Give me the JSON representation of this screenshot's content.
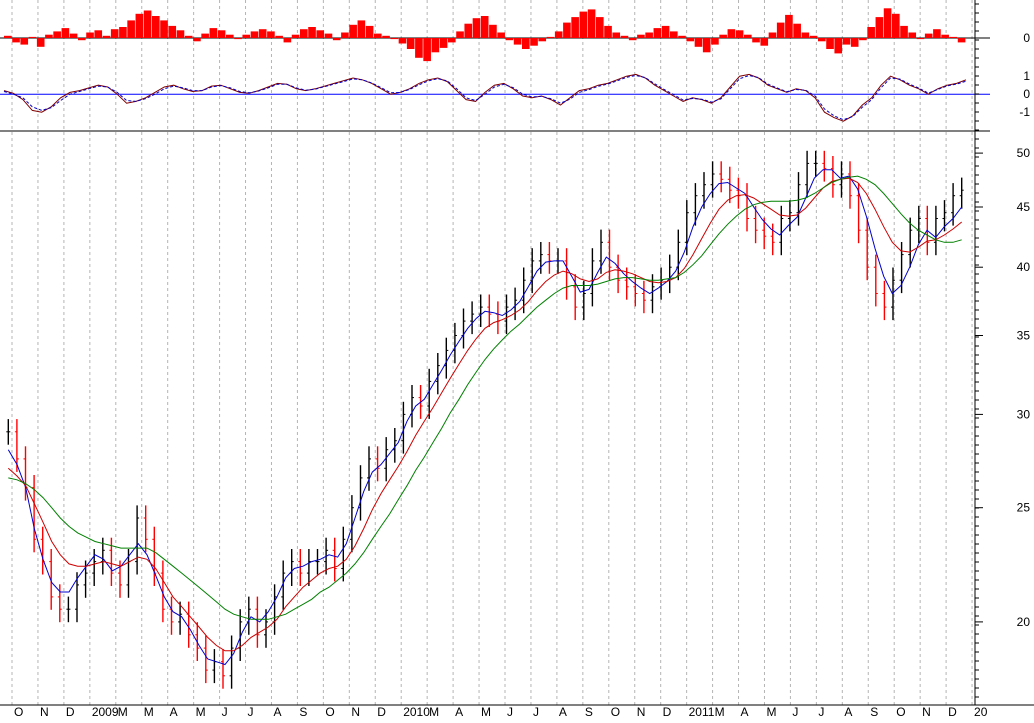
{
  "chart_data": [
    {
      "panel": "histogram",
      "type": "bar",
      "y_ticks": [
        {
          "value": 0,
          "label": "0"
        }
      ],
      "colors": {
        "bars": "#ff0000",
        "zero_line": "#000000"
      },
      "values": [
        0.2,
        -0.4,
        -0.6,
        0.1,
        -0.8,
        0.3,
        0.6,
        0.9,
        0.4,
        -0.2,
        0.5,
        0.7,
        0.2,
        0.8,
        1.0,
        1.6,
        2.2,
        2.5,
        2.0,
        1.6,
        1.1,
        0.7,
        0.2,
        -0.3,
        0.4,
        0.9,
        0.7,
        0.3,
        -0.1,
        0.3,
        0.6,
        0.8,
        0.6,
        0.2,
        -0.4,
        0.3,
        0.8,
        1.0,
        0.7,
        0.4,
        -0.2,
        0.5,
        1.2,
        1.6,
        1.1,
        0.4,
        0.2,
        -0.1,
        -0.5,
        -1.0,
        -1.8,
        -2.1,
        -1.3,
        -0.9,
        -0.4,
        0.6,
        1.3,
        1.8,
        2.0,
        1.2,
        0.5,
        -0.2,
        -0.6,
        -1.0,
        -0.7,
        -0.3,
        0.1,
        0.6,
        1.4,
        1.9,
        2.4,
        2.6,
        1.9,
        1.1,
        0.5,
        0.2,
        -0.2,
        0.3,
        0.5,
        0.9,
        1.1,
        0.6,
        0.2,
        -0.3,
        -0.8,
        -1.3,
        -0.6,
        0.3,
        0.8,
        0.7,
        0.3,
        -0.4,
        -0.7,
        0.5,
        1.4,
        2.1,
        1.3,
        0.5,
        0.2,
        -0.3,
        -1.0,
        -1.4,
        -0.6,
        -0.8,
        -0.2,
        1.0,
        1.9,
        2.7,
        2.2,
        1.1,
        0.5,
        -0.1,
        0.4,
        0.8,
        0.3,
        0.1,
        -0.4
      ]
    },
    {
      "panel": "oscillator",
      "type": "line",
      "y_ticks": [
        {
          "value": 1,
          "label": "1"
        },
        {
          "value": 0,
          "label": "0"
        },
        {
          "value": -1,
          "label": "-1"
        }
      ],
      "ylim": [
        -1.6,
        1.4
      ],
      "colors": {
        "line": "#800000",
        "signal": "#0000cc",
        "zero_line": "#0000ff"
      },
      "series": [
        {
          "values": [
            0.2,
            0.05,
            -0.3,
            -0.9,
            -1.0,
            -0.7,
            -0.2,
            0.1,
            0.2,
            0.35,
            0.5,
            0.4,
            0.0,
            -0.5,
            -0.4,
            -0.2,
            0.1,
            0.4,
            0.5,
            0.3,
            0.15,
            0.2,
            0.45,
            0.5,
            0.3,
            0.1,
            0.05,
            0.2,
            0.4,
            0.6,
            0.55,
            0.3,
            0.2,
            0.3,
            0.45,
            0.6,
            0.75,
            0.9,
            0.8,
            0.6,
            0.3,
            0.0,
            0.1,
            0.3,
            0.6,
            0.8,
            0.9,
            0.7,
            0.2,
            -0.3,
            -0.4,
            0.1,
            0.5,
            0.6,
            0.3,
            -0.1,
            -0.2,
            -0.1,
            -0.3,
            -0.6,
            -0.2,
            0.2,
            0.3,
            0.5,
            0.6,
            0.8,
            1.0,
            1.1,
            0.9,
            0.5,
            0.2,
            -0.1,
            -0.4,
            -0.2,
            -0.3,
            -0.5,
            -0.2,
            0.4,
            1.0,
            1.1,
            0.9,
            0.5,
            0.3,
            0.1,
            0.3,
            0.2,
            -0.2,
            -1.0,
            -1.3,
            -1.5,
            -1.2,
            -0.6,
            -0.2,
            0.5,
            1.0,
            0.8,
            0.5,
            0.3,
            0.0,
            0.3,
            0.5,
            0.6,
            0.8
          ]
        },
        {
          "values": [
            0.15,
            0.0,
            -0.2,
            -0.7,
            -0.9,
            -0.75,
            -0.35,
            0.0,
            0.15,
            0.3,
            0.45,
            0.4,
            0.1,
            -0.35,
            -0.4,
            -0.25,
            0.0,
            0.3,
            0.45,
            0.35,
            0.2,
            0.2,
            0.4,
            0.48,
            0.35,
            0.15,
            0.08,
            0.18,
            0.35,
            0.55,
            0.55,
            0.35,
            0.22,
            0.28,
            0.42,
            0.56,
            0.7,
            0.85,
            0.8,
            0.62,
            0.36,
            0.08,
            0.1,
            0.26,
            0.52,
            0.74,
            0.86,
            0.74,
            0.3,
            -0.2,
            -0.35,
            0.0,
            0.4,
            0.55,
            0.36,
            0.0,
            -0.15,
            -0.12,
            -0.25,
            -0.5,
            -0.28,
            0.1,
            0.25,
            0.44,
            0.56,
            0.74,
            0.94,
            1.04,
            0.92,
            0.58,
            0.26,
            -0.02,
            -0.32,
            -0.24,
            -0.28,
            -0.44,
            -0.26,
            0.3,
            0.86,
            1.04,
            0.92,
            0.56,
            0.34,
            0.14,
            0.26,
            0.22,
            -0.1,
            -0.82,
            -1.2,
            -1.42,
            -1.24,
            -0.72,
            -0.3,
            0.36,
            0.9,
            0.84,
            0.56,
            0.34,
            0.06,
            0.26,
            0.46,
            0.56,
            0.72
          ]
        }
      ]
    },
    {
      "panel": "price",
      "type": "line",
      "scale": "log",
      "ylim": [
        17,
        52
      ],
      "y_ticks": [
        {
          "value": 50,
          "label": "50"
        },
        {
          "value": 45,
          "label": "45"
        },
        {
          "value": 40,
          "label": "40"
        },
        {
          "value": 35,
          "label": "35"
        },
        {
          "value": 30,
          "label": "30"
        },
        {
          "value": 25,
          "label": "25"
        },
        {
          "value": 20,
          "label": "20"
        }
      ],
      "x_ticks": [
        "O",
        "N",
        "D",
        "2009",
        "M",
        "M",
        "A",
        "M",
        "J",
        "J",
        "A",
        "S",
        "O",
        "N",
        "D",
        "2010",
        "M",
        "A",
        "M",
        "J",
        "J",
        "A",
        "S",
        "O",
        "N",
        "D",
        "2011",
        "M",
        "A",
        "M",
        "J",
        "J",
        "A",
        "S",
        "O",
        "N",
        "D",
        "20"
      ],
      "grid": "vertical dashed",
      "colors": {
        "price_up": "#000000",
        "price_down": "#ff0000",
        "ma_fast": "#0000cc",
        "ma_mid": "#cc0000",
        "ma_slow": "#008000",
        "grid": "#b4b4b4"
      },
      "series": [
        {
          "values": [
            29,
            27.5,
            26,
            23.5,
            22.5,
            21,
            20.5,
            20.5,
            21.5,
            22,
            22.5,
            23,
            22,
            21.5,
            22.5,
            24.5,
            23.5,
            22,
            20.5,
            20,
            20.3,
            19.5,
            19,
            18.2,
            18.5,
            18,
            19,
            20,
            20.5,
            19.5,
            20,
            21,
            22,
            22.5,
            22,
            22.5,
            22.5,
            23,
            22.2,
            23.5,
            25,
            26.5,
            27.5,
            27,
            28,
            28.5,
            30,
            31,
            30.5,
            32,
            33,
            34,
            35,
            36,
            36.5,
            37,
            36.5,
            36,
            37,
            37.5,
            39,
            40.5,
            41,
            40.5,
            40.5,
            38.5,
            37,
            38,
            40.5,
            42,
            40,
            39,
            38.5,
            38,
            37.5,
            38.5,
            39,
            40,
            42,
            44.5,
            46,
            47,
            48,
            47.5,
            46.5,
            46,
            44,
            43,
            42.5,
            42,
            44,
            44.5,
            47,
            49,
            49,
            48.5,
            47,
            48,
            46,
            43,
            40,
            38,
            37,
            39,
            41,
            43,
            44,
            42,
            44,
            44.5,
            46,
            46.5
          ]
        },
        {
          "values": [
            28,
            27.2,
            26,
            24,
            22.6,
            21.6,
            21.2,
            21.2,
            21.8,
            22.3,
            22.8,
            22.6,
            22.1,
            22.3,
            22.8,
            23.3,
            22.8,
            21.9,
            21,
            20.4,
            20.2,
            19.7,
            19.1,
            18.6,
            18.5,
            18.4,
            18.8,
            19.6,
            20.2,
            20,
            20.4,
            21,
            21.8,
            22.2,
            22.3,
            22.5,
            22.6,
            22.8,
            22.7,
            23.3,
            24.5,
            25.8,
            26.8,
            27.2,
            27.8,
            28.4,
            29.6,
            30.5,
            30.9,
            31.8,
            32.7,
            33.7,
            34.6,
            35.5,
            36.2,
            36.7,
            36.6,
            36.4,
            36.8,
            37.4,
            38.5,
            39.7,
            40.4,
            40.5,
            40.5,
            39.3,
            38.1,
            38.3,
            39.6,
            40.8,
            40.3,
            39.5,
            38.9,
            38.4,
            38,
            38.4,
            38.9,
            39.7,
            41.2,
            43.3,
            45,
            46.2,
            47.1,
            47.2,
            46.7,
            46.2,
            45,
            43.9,
            43.1,
            42.6,
            43.4,
            44.1,
            45.8,
            47.6,
            48.4,
            48.4,
            47.6,
            47.8,
            46.6,
            44.2,
            41.5,
            39.3,
            38,
            38.6,
            40,
            41.8,
            43,
            42.4,
            43.3,
            44,
            45
          ]
        },
        {
          "values": [
            27,
            26.6,
            26.1,
            25.2,
            24.3,
            23.4,
            22.8,
            22.4,
            22.3,
            22.3,
            22.4,
            22.5,
            22.4,
            22.3,
            22.5,
            22.7,
            22.6,
            22.2,
            21.6,
            21,
            20.6,
            20.2,
            19.8,
            19.4,
            19.1,
            18.9,
            18.9,
            19.1,
            19.4,
            19.6,
            19.8,
            20.1,
            20.6,
            21,
            21.4,
            21.7,
            22,
            22.2,
            22.3,
            22.6,
            23.2,
            24,
            24.9,
            25.7,
            26.4,
            27.1,
            27.9,
            28.8,
            29.6,
            30.4,
            31.3,
            32.2,
            33.1,
            34,
            34.8,
            35.5,
            35.9,
            36.1,
            36.4,
            36.8,
            37.4,
            38.2,
            38.9,
            39.4,
            39.7,
            39.5,
            39.1,
            38.9,
            39.1,
            39.6,
            39.8,
            39.7,
            39.5,
            39.2,
            38.9,
            38.8,
            38.9,
            39.2,
            39.9,
            41,
            42.3,
            43.6,
            44.8,
            45.6,
            46,
            46.1,
            45.8,
            45.3,
            44.8,
            44.3,
            44.2,
            44.3,
            44.9,
            45.8,
            46.7,
            47.3,
            47.5,
            47.6,
            47.2,
            46.2,
            44.8,
            43.3,
            42,
            41.3,
            41.2,
            41.6,
            42.1,
            42.2,
            42.6,
            43.1,
            43.7
          ]
        },
        {
          "values": [
            26.5,
            26.4,
            26.2,
            25.9,
            25.5,
            25,
            24.5,
            24.1,
            23.8,
            23.6,
            23.4,
            23.3,
            23.2,
            23.1,
            23.1,
            23.1,
            23.1,
            22.9,
            22.6,
            22.3,
            22,
            21.7,
            21.4,
            21.1,
            20.8,
            20.5,
            20.3,
            20.2,
            20.1,
            20.1,
            20.1,
            20.2,
            20.3,
            20.5,
            20.7,
            20.9,
            21.2,
            21.4,
            21.7,
            22,
            22.4,
            22.9,
            23.5,
            24.1,
            24.7,
            25.4,
            26.1,
            26.9,
            27.6,
            28.4,
            29.2,
            30.1,
            30.9,
            31.8,
            32.6,
            33.4,
            34.1,
            34.7,
            35.3,
            35.8,
            36.4,
            37,
            37.5,
            38,
            38.4,
            38.6,
            38.6,
            38.6,
            38.7,
            38.9,
            39.1,
            39.2,
            39.2,
            39.1,
            39,
            39,
            39.1,
            39.2,
            39.6,
            40.2,
            40.9,
            41.8,
            42.7,
            43.5,
            44.2,
            44.8,
            45.2,
            45.4,
            45.5,
            45.5,
            45.5,
            45.6,
            45.8,
            46.2,
            46.7,
            47.2,
            47.5,
            47.7,
            47.8,
            47.5,
            47,
            46.2,
            45.3,
            44.4,
            43.6,
            43,
            42.6,
            42.2,
            42,
            42,
            42.2
          ]
        }
      ]
    }
  ]
}
